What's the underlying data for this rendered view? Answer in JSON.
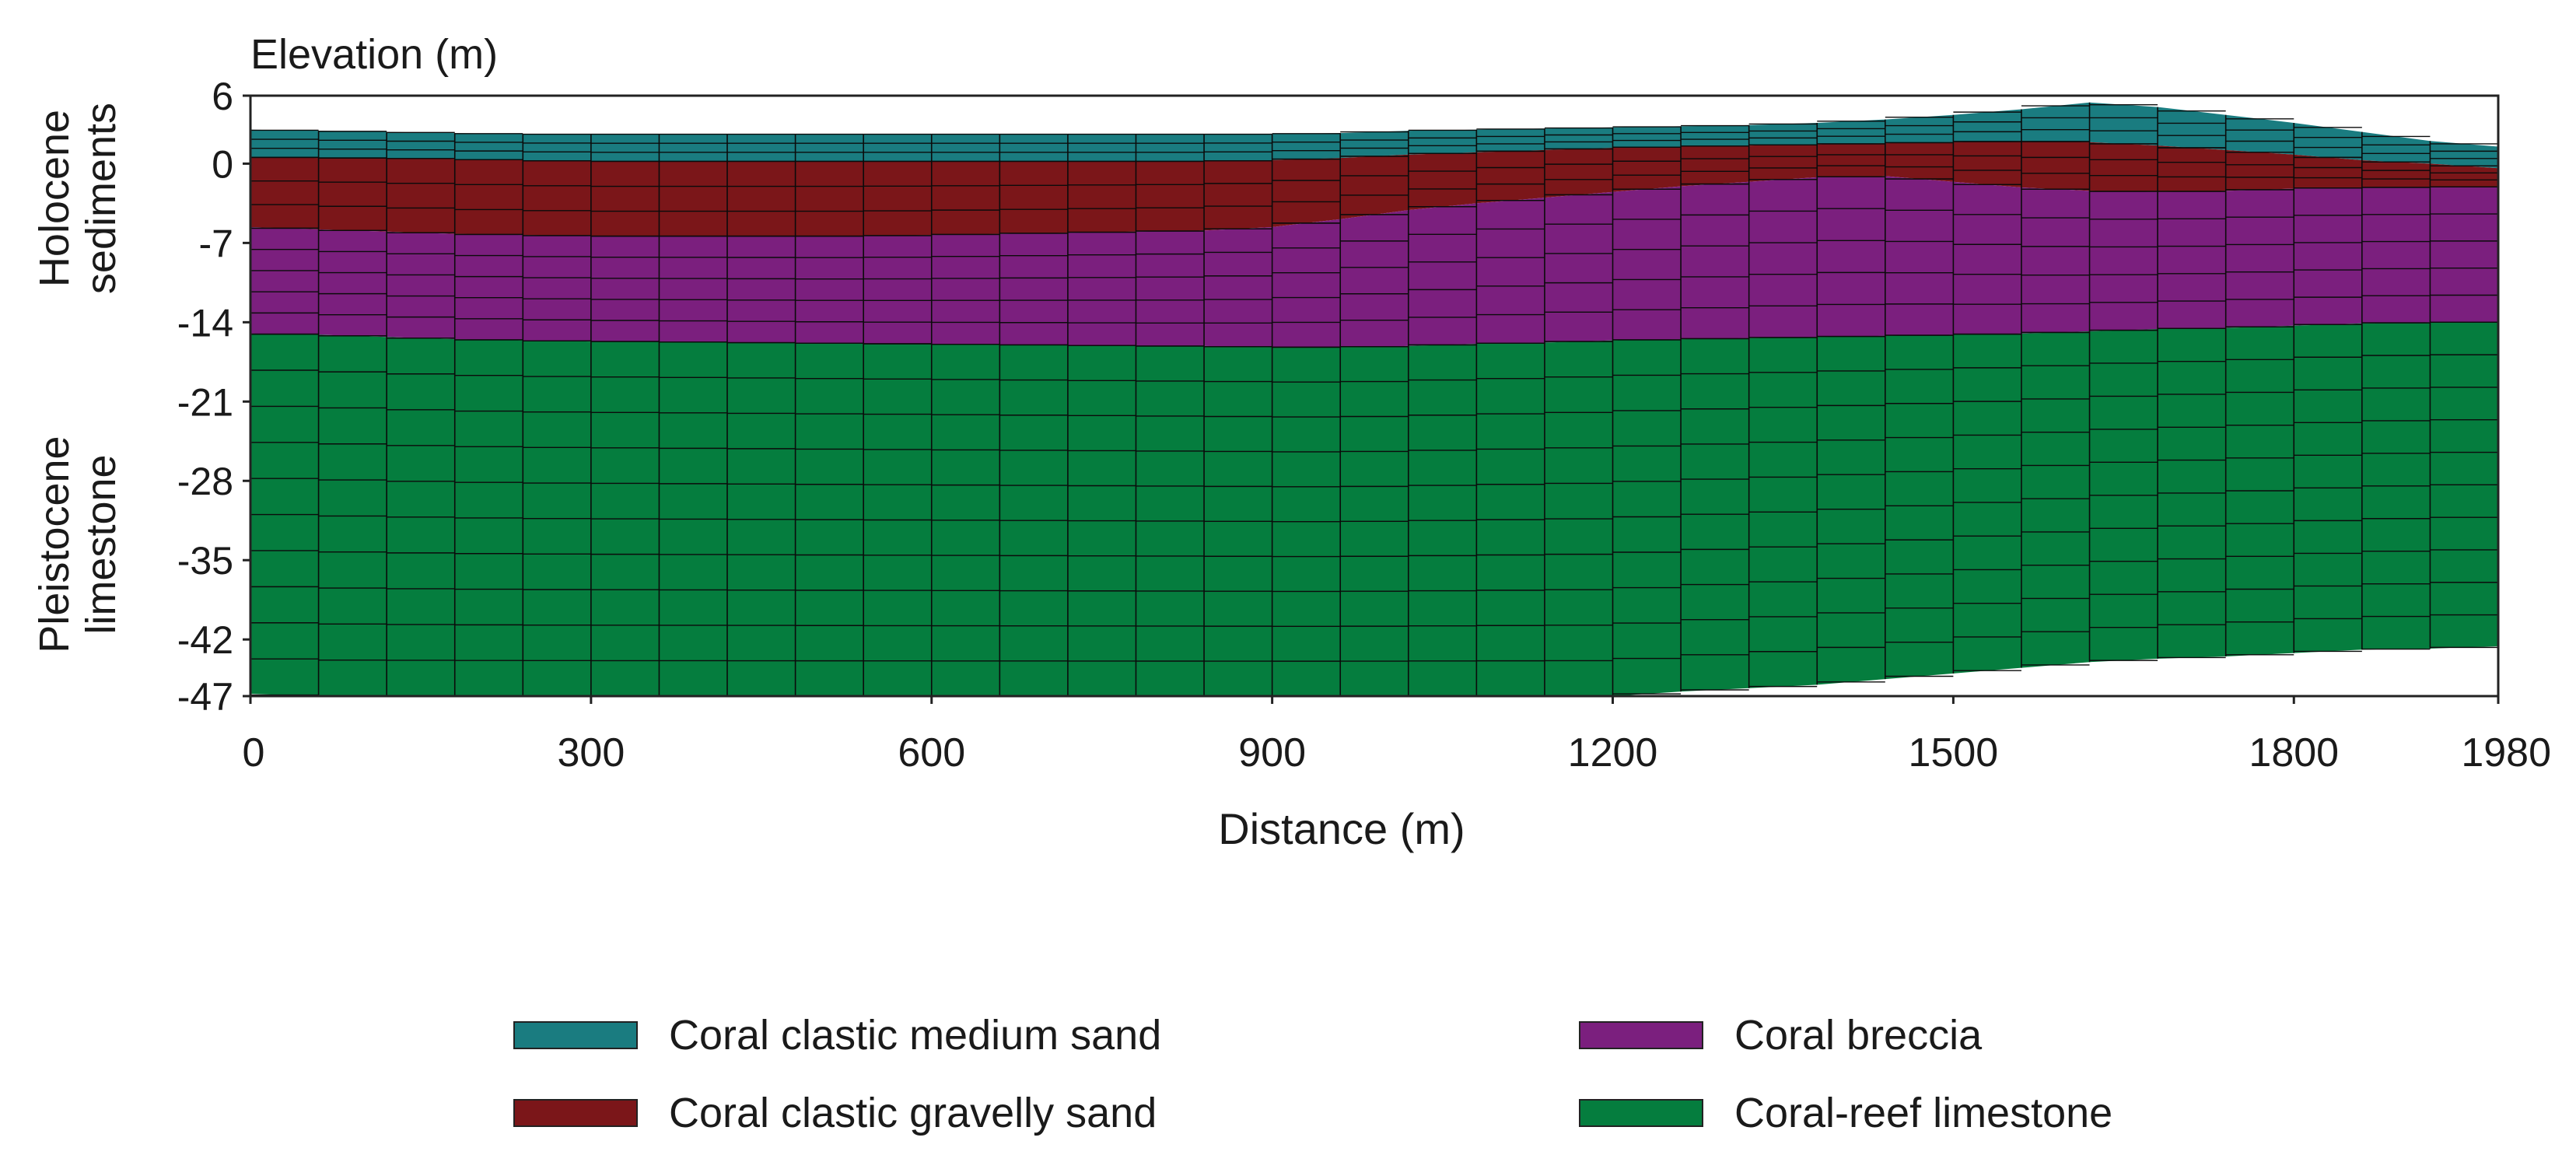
{
  "figure": {
    "y_axis_title": "Elevation (m)",
    "x_axis_title": "Distance (m)",
    "y_ticks": [
      "6",
      "0",
      "-7",
      "-14",
      "-21",
      "-28",
      "-35",
      "-42",
      "-47"
    ],
    "x_ticks": [
      "0",
      "300",
      "600",
      "900",
      "1200",
      "1500",
      "1800",
      "1980"
    ],
    "group_labels": [
      {
        "line1": "Holocene",
        "line2": "sediments"
      },
      {
        "line1": "Pleistocene",
        "line2": "limestone"
      }
    ]
  },
  "chart_data": {
    "type": "area",
    "xlabel": "Distance (m)",
    "ylabel": "Elevation (m)",
    "xlim": [
      0,
      1980
    ],
    "ylim": [
      -47,
      6
    ],
    "x": [
      0,
      60,
      120,
      180,
      240,
      300,
      360,
      420,
      480,
      540,
      600,
      660,
      720,
      780,
      840,
      900,
      960,
      1020,
      1080,
      1140,
      1200,
      1260,
      1320,
      1380,
      1440,
      1500,
      1560,
      1620,
      1680,
      1740,
      1800,
      1860,
      1920,
      1980
    ],
    "boundaries": {
      "surface": [
        3.0,
        2.9,
        2.8,
        2.7,
        2.6,
        2.6,
        2.6,
        2.6,
        2.6,
        2.6,
        2.6,
        2.6,
        2.6,
        2.6,
        2.6,
        2.6,
        2.7,
        2.9,
        3.0,
        3.1,
        3.2,
        3.3,
        3.4,
        3.6,
        3.9,
        4.3,
        4.8,
        5.4,
        5.0,
        4.3,
        3.6,
        2.8,
        2.0,
        1.5
      ],
      "sand_bottom": [
        0.6,
        0.5,
        0.5,
        0.4,
        0.3,
        0.2,
        0.2,
        0.2,
        0.2,
        0.2,
        0.2,
        0.2,
        0.2,
        0.2,
        0.2,
        0.3,
        0.5,
        0.8,
        1.0,
        1.2,
        1.4,
        1.5,
        1.6,
        1.7,
        1.8,
        1.9,
        2.0,
        1.9,
        1.6,
        1.2,
        0.8,
        0.3,
        0.0,
        -0.4
      ],
      "gravel_bottom": [
        -5.6,
        -5.8,
        -6.0,
        -6.2,
        -6.3,
        -6.4,
        -6.4,
        -6.4,
        -6.4,
        -6.4,
        -6.3,
        -6.2,
        -6.1,
        -6.0,
        -5.9,
        -5.6,
        -4.9,
        -4.1,
        -3.5,
        -3.0,
        -2.5,
        -2.0,
        -1.6,
        -1.2,
        -1.1,
        -1.6,
        -2.1,
        -2.4,
        -2.5,
        -2.4,
        -2.2,
        -2.1,
        -2.1,
        -2.0
      ],
      "breccia_bottom": [
        -15.0,
        -15.1,
        -15.3,
        -15.5,
        -15.6,
        -15.7,
        -15.7,
        -15.8,
        -15.8,
        -15.9,
        -15.9,
        -16.0,
        -16.0,
        -16.1,
        -16.1,
        -16.2,
        -16.2,
        -16.1,
        -15.9,
        -15.8,
        -15.6,
        -15.5,
        -15.4,
        -15.3,
        -15.2,
        -15.1,
        -15.0,
        -14.8,
        -14.6,
        -14.5,
        -14.3,
        -14.1,
        -14.0,
        -14.0
      ],
      "limestone_bottom": [
        -46.8,
        -47.0,
        -47.0,
        -47.0,
        -47.0,
        -47.0,
        -47.0,
        -47.0,
        -47.0,
        -47.0,
        -47.0,
        -47.0,
        -47.0,
        -47.0,
        -47.0,
        -47.0,
        -47.0,
        -47.0,
        -47.0,
        -47.0,
        -47.0,
        -46.6,
        -46.3,
        -46.0,
        -45.5,
        -45.0,
        -44.5,
        -44.0,
        -43.7,
        -43.5,
        -43.2,
        -42.9,
        -42.8,
        -42.6
      ]
    },
    "layers": [
      {
        "name": "Coral clastic medium sand",
        "top": "surface",
        "bottom": "sand_bottom",
        "color": "#1a7c80",
        "sublayers": 3
      },
      {
        "name": "Coral clastic gravelly sand",
        "top": "sand_bottom",
        "bottom": "gravel_bottom",
        "color": "#7b1619",
        "sublayers": 3
      },
      {
        "name": "Coral breccia",
        "top": "gravel_bottom",
        "bottom": "breccia_bottom",
        "color": "#7b1f7e",
        "sublayers": 5
      },
      {
        "name": "Coral-reef limestone",
        "top": "breccia_bottom",
        "bottom": "limestone_bottom",
        "color": "#057d3e",
        "sublayers": 10
      }
    ],
    "legend": [
      {
        "label": "Coral clastic medium sand",
        "color": "#1a7c80"
      },
      {
        "label": "Coral breccia",
        "color": "#7b1f7e"
      },
      {
        "label": "Coral clastic gravelly sand",
        "color": "#7b1619"
      },
      {
        "label": "Coral-reef limestone",
        "color": "#057d3e"
      }
    ]
  }
}
